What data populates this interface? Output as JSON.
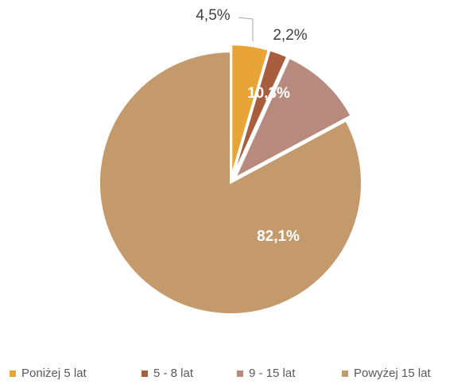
{
  "chart_data": {
    "type": "pie",
    "categories": [
      "Poniżej 5 lat",
      "5 - 8 lat",
      "9 - 15 lat",
      "Powyżej 15 lat"
    ],
    "values": [
      4.5,
      2.2,
      10.3,
      82.1
    ],
    "value_labels": [
      "4,5%",
      "2,2%",
      "10,3%",
      "82,1%"
    ],
    "colors": [
      "#e8a436",
      "#a85e3e",
      "#b88a7e",
      "#c49a6c"
    ],
    "legend": "bottom"
  }
}
